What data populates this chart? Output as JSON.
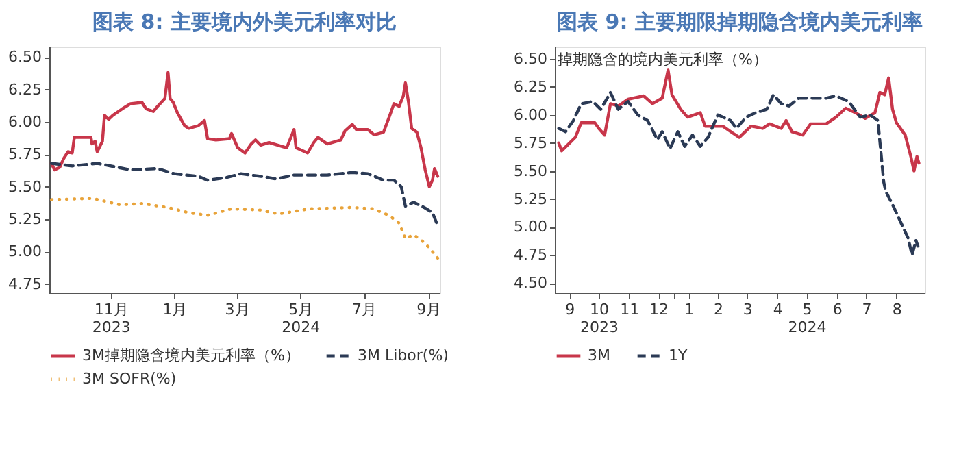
{
  "chart_data": [
    {
      "type": "line",
      "title": "图表 8: 主要境内外美元利率对比",
      "legend": "bottom",
      "grid": false,
      "xlim": [
        "2023-09-03",
        "2024-09-12"
      ],
      "ylim": [
        4.68,
        6.58
      ],
      "yticks": [
        {
          "value": 4.75,
          "label": "4.75"
        },
        {
          "value": 5.0,
          "label": "5.00"
        },
        {
          "value": 5.25,
          "label": "5.25"
        },
        {
          "value": 5.5,
          "label": "5.50"
        },
        {
          "value": 5.75,
          "label": "5.75"
        },
        {
          "value": 6.0,
          "label": "6.00"
        },
        {
          "value": 6.25,
          "label": "6.25"
        },
        {
          "value": 6.5,
          "label": "6.50"
        }
      ],
      "xticks": [
        {
          "value": "2023-11-01",
          "label": "11月\n2023"
        },
        {
          "value": "2024-01-01",
          "label": "1月"
        },
        {
          "value": "2024-03-01",
          "label": "3月"
        },
        {
          "value": "2024-05-01",
          "label": "5月\n2024"
        },
        {
          "value": "2024-07-01",
          "label": "7月"
        },
        {
          "value": "2024-09-01",
          "label": "9月"
        }
      ],
      "series": [
        {
          "name": "3M掉期隐含境内美元利率（%）",
          "color": "#c8364a",
          "line_style": "solid",
          "x": [
            "2023-09-05",
            "2023-09-08",
            "2023-09-13",
            "2023-09-17",
            "2023-09-21",
            "2023-09-25",
            "2023-09-27",
            "2023-10-13",
            "2023-10-14",
            "2023-10-17",
            "2023-10-19",
            "2023-10-24",
            "2023-10-26",
            "2023-10-30",
            "2023-11-03",
            "2023-11-12",
            "2023-11-20",
            "2023-12-01",
            "2023-12-05",
            "2023-12-12",
            "2023-12-16",
            "2023-12-23",
            "2023-12-26",
            "2023-12-28",
            "2023-12-31",
            "2024-01-04",
            "2024-01-11",
            "2024-01-15",
            "2024-01-24",
            "2024-01-30",
            "2024-02-02",
            "2024-02-10",
            "2024-02-23",
            "2024-02-25",
            "2024-03-02",
            "2024-03-09",
            "2024-03-15",
            "2024-03-19",
            "2024-03-24",
            "2024-04-01",
            "2024-04-18",
            "2024-04-25",
            "2024-04-27",
            "2024-05-08",
            "2024-05-14",
            "2024-05-18",
            "2024-05-27",
            "2024-06-09",
            "2024-06-13",
            "2024-06-20",
            "2024-06-24",
            "2024-07-05",
            "2024-07-11",
            "2024-07-20",
            "2024-07-26",
            "2024-07-30",
            "2024-08-04",
            "2024-08-08",
            "2024-08-10",
            "2024-08-13",
            "2024-08-16",
            "2024-08-21",
            "2024-08-25",
            "2024-08-29",
            "2024-09-02",
            "2024-09-05",
            "2024-09-07",
            "2024-09-10"
          ],
          "values": [
            5.68,
            5.63,
            5.65,
            5.72,
            5.77,
            5.76,
            5.88,
            5.88,
            5.83,
            5.85,
            5.77,
            5.85,
            6.05,
            6.02,
            6.05,
            6.1,
            6.14,
            6.15,
            6.1,
            6.08,
            6.12,
            6.18,
            6.38,
            6.18,
            6.15,
            6.07,
            5.97,
            5.95,
            5.97,
            6.01,
            5.87,
            5.86,
            5.87,
            5.91,
            5.8,
            5.76,
            5.83,
            5.86,
            5.82,
            5.84,
            5.8,
            5.94,
            5.8,
            5.76,
            5.84,
            5.88,
            5.83,
            5.86,
            5.93,
            5.98,
            5.94,
            5.94,
            5.9,
            5.92,
            6.05,
            6.14,
            6.12,
            6.2,
            6.3,
            6.15,
            5.95,
            5.92,
            5.8,
            5.63,
            5.5,
            5.55,
            5.64,
            5.58
          ]
        },
        {
          "name": "3M Libor(%)",
          "color": "#2b3a55",
          "line_style": "dashed",
          "x": [
            "2023-09-05",
            "2023-09-25",
            "2023-10-19",
            "2023-11-20",
            "2023-12-16",
            "2024-01-01",
            "2024-01-24",
            "2024-02-02",
            "2024-02-20",
            "2024-03-05",
            "2024-03-24",
            "2024-04-08",
            "2024-04-25",
            "2024-05-27",
            "2024-06-20",
            "2024-07-05",
            "2024-07-20",
            "2024-07-30",
            "2024-08-06",
            "2024-08-10",
            "2024-08-18",
            "2024-08-28",
            "2024-09-05",
            "2024-09-10"
          ],
          "values": [
            5.68,
            5.66,
            5.68,
            5.63,
            5.64,
            5.6,
            5.58,
            5.55,
            5.57,
            5.6,
            5.58,
            5.56,
            5.59,
            5.59,
            5.61,
            5.6,
            5.55,
            5.55,
            5.5,
            5.35,
            5.38,
            5.34,
            5.3,
            5.2
          ]
        },
        {
          "name": "3M SOFR(%)",
          "color": "#e8a33a",
          "line_style": "dotted",
          "x": [
            "2023-09-05",
            "2023-10-15",
            "2023-11-10",
            "2023-12-01",
            "2023-12-26",
            "2024-01-15",
            "2024-02-02",
            "2024-02-25",
            "2024-03-24",
            "2024-04-10",
            "2024-05-10",
            "2024-06-20",
            "2024-07-10",
            "2024-07-25",
            "2024-08-04",
            "2024-08-10",
            "2024-08-18",
            "2024-08-28",
            "2024-09-03",
            "2024-09-10"
          ],
          "values": [
            5.4,
            5.41,
            5.36,
            5.37,
            5.34,
            5.3,
            5.28,
            5.33,
            5.32,
            5.29,
            5.33,
            5.34,
            5.33,
            5.28,
            5.22,
            5.1,
            5.13,
            5.07,
            5.02,
            4.95
          ]
        }
      ]
    },
    {
      "type": "line",
      "title": "图表 9: 主要期限掉期隐含境内美元利率",
      "ylabel": "掉期隐含的境内美元利率（%）",
      "legend": "bottom",
      "grid": false,
      "xlim": [
        "2023-09-01",
        "2024-09-14"
      ],
      "ylim": [
        4.41,
        6.61
      ],
      "yticks": [
        {
          "value": 4.5,
          "label": "4.50"
        },
        {
          "value": 4.75,
          "label": "4.75"
        },
        {
          "value": 5.0,
          "label": "5.00"
        },
        {
          "value": 5.25,
          "label": "5.25"
        },
        {
          "value": 5.5,
          "label": "5.50"
        },
        {
          "value": 5.75,
          "label": "5.75"
        },
        {
          "value": 6.0,
          "label": "6.00"
        },
        {
          "value": 6.25,
          "label": "6.25"
        },
        {
          "value": 6.5,
          "label": "6.50"
        }
      ],
      "xticks": [
        {
          "value": "2023-09-16",
          "label": "9"
        },
        {
          "value": "2023-10-16",
          "label": "10\n2023"
        },
        {
          "value": "2023-11-16",
          "label": "11"
        },
        {
          "value": "2023-12-16",
          "label": "12"
        },
        {
          "value": "2024-01-01",
          "label": null
        },
        {
          "value": "2024-01-16",
          "label": "1"
        },
        {
          "value": "2024-02-15",
          "label": "2"
        },
        {
          "value": "2024-03-16",
          "label": "3"
        },
        {
          "value": "2024-04-16",
          "label": "4"
        },
        {
          "value": "2024-05-16",
          "label": "5\n2024"
        },
        {
          "value": "2024-06-16",
          "label": "6"
        },
        {
          "value": "2024-07-16",
          "label": "7"
        },
        {
          "value": "2024-08-16",
          "label": "8"
        }
      ],
      "series": [
        {
          "name": "3M",
          "color": "#c8364a",
          "line_style": "solid",
          "x": [
            "2023-09-05",
            "2023-09-08",
            "2023-09-15",
            "2023-09-22",
            "2023-09-28",
            "2023-10-12",
            "2023-10-16",
            "2023-10-22",
            "2023-10-28",
            "2023-11-05",
            "2023-11-15",
            "2023-12-01",
            "2023-12-10",
            "2023-12-20",
            "2023-12-26",
            "2023-12-30",
            "2024-01-08",
            "2024-01-15",
            "2024-01-28",
            "2024-02-02",
            "2024-02-20",
            "2024-03-01",
            "2024-03-08",
            "2024-03-20",
            "2024-04-01",
            "2024-04-08",
            "2024-04-20",
            "2024-04-25",
            "2024-05-01",
            "2024-05-12",
            "2024-05-20",
            "2024-06-05",
            "2024-06-15",
            "2024-06-25",
            "2024-07-05",
            "2024-07-15",
            "2024-07-25",
            "2024-07-30",
            "2024-08-04",
            "2024-08-08",
            "2024-08-12",
            "2024-08-16",
            "2024-08-25",
            "2024-08-31",
            "2024-09-03",
            "2024-09-06",
            "2024-09-08"
          ],
          "values": [
            5.75,
            5.68,
            5.74,
            5.8,
            5.93,
            5.93,
            5.88,
            5.82,
            6.1,
            6.08,
            6.14,
            6.17,
            6.1,
            6.15,
            6.4,
            6.18,
            6.05,
            5.98,
            6.02,
            5.9,
            5.9,
            5.84,
            5.8,
            5.9,
            5.88,
            5.92,
            5.88,
            5.95,
            5.85,
            5.82,
            5.92,
            5.92,
            5.98,
            6.06,
            6.02,
            5.97,
            6.02,
            6.2,
            6.18,
            6.33,
            6.05,
            5.93,
            5.82,
            5.62,
            5.5,
            5.63,
            5.57
          ]
        },
        {
          "name": "1Y",
          "color": "#2b3a55",
          "line_style": "dashed",
          "x": [
            "2023-09-05",
            "2023-09-12",
            "2023-09-20",
            "2023-09-28",
            "2023-10-10",
            "2023-10-18",
            "2023-10-28",
            "2023-11-05",
            "2023-11-15",
            "2023-11-25",
            "2023-12-05",
            "2023-12-15",
            "2023-12-20",
            "2023-12-28",
            "2024-01-05",
            "2024-01-12",
            "2024-01-20",
            "2024-01-28",
            "2024-02-05",
            "2024-02-15",
            "2024-02-28",
            "2024-03-05",
            "2024-03-15",
            "2024-03-25",
            "2024-04-05",
            "2024-04-12",
            "2024-04-20",
            "2024-04-28",
            "2024-05-08",
            "2024-05-20",
            "2024-06-05",
            "2024-06-15",
            "2024-06-28",
            "2024-07-10",
            "2024-07-20",
            "2024-07-28",
            "2024-08-03",
            "2024-08-05",
            "2024-08-12",
            "2024-08-20",
            "2024-08-28",
            "2024-09-01",
            "2024-09-05",
            "2024-09-07"
          ],
          "values": [
            5.88,
            5.85,
            5.95,
            6.1,
            6.12,
            6.05,
            6.2,
            6.05,
            6.12,
            6.0,
            5.95,
            5.78,
            5.85,
            5.7,
            5.85,
            5.72,
            5.82,
            5.72,
            5.8,
            6.0,
            5.95,
            5.88,
            5.98,
            6.02,
            6.05,
            6.18,
            6.1,
            6.08,
            6.15,
            6.15,
            6.15,
            6.17,
            6.12,
            5.98,
            6.0,
            5.95,
            5.4,
            5.32,
            5.2,
            5.05,
            4.9,
            4.75,
            4.88,
            4.83
          ]
        }
      ]
    }
  ]
}
